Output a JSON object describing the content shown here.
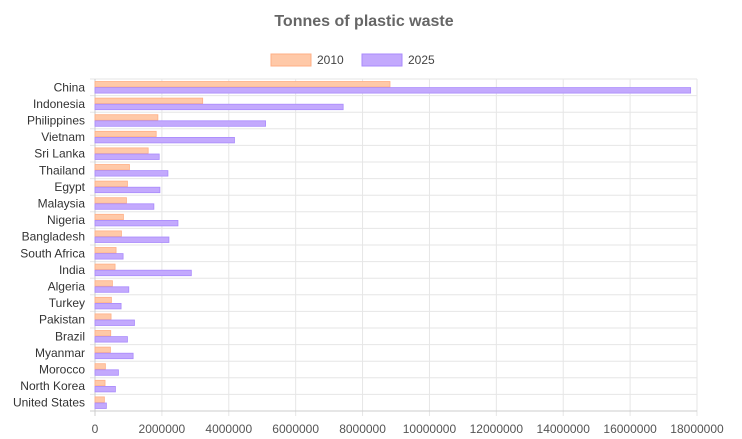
{
  "chart_data": {
    "type": "bar",
    "orientation": "horizontal",
    "title": "Tonnes of plastic waste",
    "legend_position": "top",
    "grid": true,
    "xlim": [
      0,
      18000000
    ],
    "x_ticks": [
      "0",
      "2000000",
      "4000000",
      "6000000",
      "8000000",
      "10000000",
      "12000000",
      "14000000",
      "16000000",
      "18000000"
    ],
    "categories": [
      "China",
      "Indonesia",
      "Philippines",
      "Vietnam",
      "Sri Lanka",
      "Thailand",
      "Egypt",
      "Malaysia",
      "Nigeria",
      "Bangladesh",
      "South Africa",
      "India",
      "Algeria",
      "Turkey",
      "Pakistan",
      "Brazil",
      "Myanmar",
      "Morocco",
      "North Korea",
      "United States"
    ],
    "series": [
      {
        "name": "2010",
        "color": "#ffc9a8",
        "border": "#ffaf85",
        "values": [
          8820000,
          3220000,
          1880000,
          1830000,
          1590000,
          1030000,
          970000,
          940000,
          850000,
          790000,
          630000,
          600000,
          520000,
          490000,
          480000,
          470000,
          460000,
          310000,
          300000,
          280000
        ]
      },
      {
        "name": "2025",
        "color": "#c3a9fd",
        "border": "#a98afc",
        "values": [
          17810000,
          7420000,
          5100000,
          4170000,
          1920000,
          2180000,
          1940000,
          1760000,
          2480000,
          2210000,
          840000,
          2880000,
          1010000,
          780000,
          1180000,
          970000,
          1140000,
          700000,
          610000,
          340000
        ]
      }
    ]
  }
}
